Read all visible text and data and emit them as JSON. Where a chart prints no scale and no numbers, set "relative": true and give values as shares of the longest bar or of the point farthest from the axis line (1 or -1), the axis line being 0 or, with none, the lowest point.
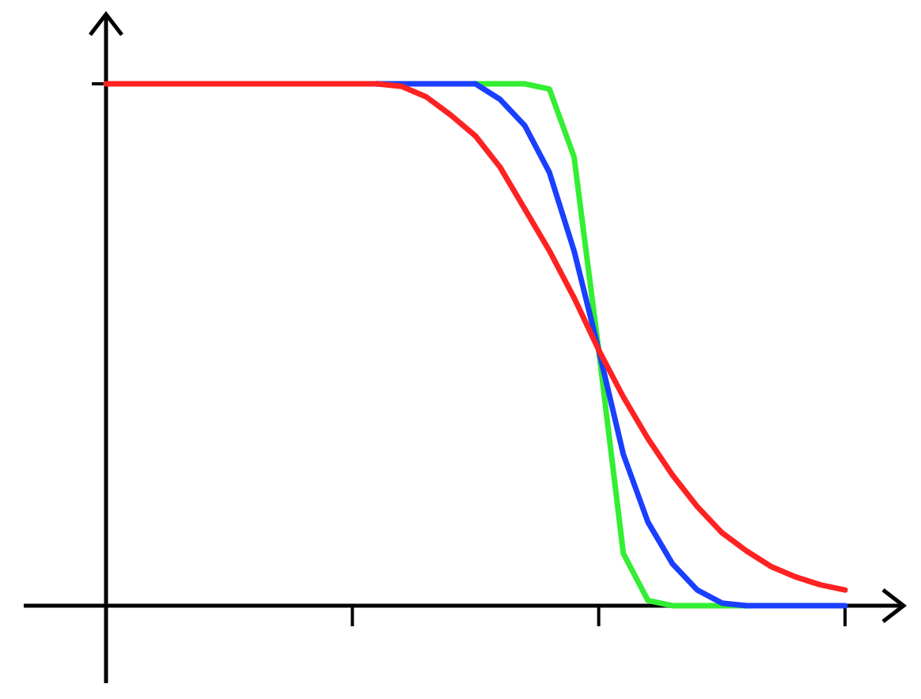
{
  "chart_data": {
    "type": "line",
    "relative": true,
    "categories": [
      null,
      null,
      null,
      null,
      null,
      null,
      null,
      null,
      null,
      null,
      null,
      null,
      null,
      null,
      null,
      null,
      null,
      null,
      null,
      null,
      null,
      null,
      null,
      null,
      null,
      null,
      null,
      null,
      null,
      null,
      null
    ],
    "marker": "none",
    "line_style": "solid",
    "series": [
      {
        "color": "#33ee33",
        "values": [
          null,
          null,
          null,
          null,
          null,
          null,
          null,
          null,
          null,
          null,
          null,
          null,
          null,
          null,
          null,
          1,
          1,
          1,
          0.99,
          0.86,
          0.49,
          0.1,
          0.01,
          0,
          0,
          0,
          0,
          null,
          null,
          null,
          null
        ]
      },
      {
        "color": "#1a3fff",
        "values": [
          null,
          null,
          null,
          null,
          null,
          null,
          null,
          null,
          null,
          null,
          null,
          1,
          1,
          1,
          1,
          1,
          0.97,
          0.92,
          0.83,
          0.68,
          0.49,
          0.29,
          0.16,
          0.08,
          0.03,
          0.005,
          0,
          0,
          0,
          0,
          0
        ]
      },
      {
        "color": "#ff2222",
        "values": [
          1,
          1,
          1,
          1,
          1,
          1,
          1,
          1,
          1,
          1,
          1,
          1,
          0.995,
          0.975,
          0.94,
          0.9,
          0.84,
          0.76,
          0.68,
          0.59,
          0.49,
          0.4,
          0.32,
          0.25,
          0.19,
          0.14,
          0.105,
          0.075,
          0.055,
          0.04,
          0.03
        ]
      }
    ]
  }
}
